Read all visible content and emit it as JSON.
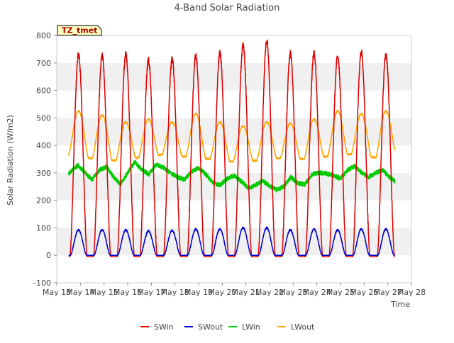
{
  "chart_data": {
    "type": "line",
    "title": "4-Band Solar Radiation",
    "xlabel": "Time",
    "ylabel": "Solar Radiation (W/m2)",
    "annotation": "TZ_tmet",
    "xlim": [
      13,
      28
    ],
    "ylim": [
      -100,
      800
    ],
    "yticks": [
      -100,
      0,
      100,
      200,
      300,
      400,
      500,
      600,
      700,
      800
    ],
    "xticks": [
      {
        "day": 13,
        "label": "May 13"
      },
      {
        "day": 14,
        "label": "May 14"
      },
      {
        "day": 15,
        "label": "May 15"
      },
      {
        "day": 16,
        "label": "May 16"
      },
      {
        "day": 17,
        "label": "May 17"
      },
      {
        "day": 18,
        "label": "May 18"
      },
      {
        "day": 19,
        "label": "May 19"
      },
      {
        "day": 20,
        "label": "May 20"
      },
      {
        "day": 21,
        "label": "May 21"
      },
      {
        "day": 22,
        "label": "May 22"
      },
      {
        "day": 23,
        "label": "May 23"
      },
      {
        "day": 24,
        "label": "May 24"
      },
      {
        "day": 25,
        "label": "May 25"
      },
      {
        "day": 26,
        "label": "May 26"
      },
      {
        "day": 27,
        "label": "May 27"
      },
      {
        "day": 28,
        "label": "May 28"
      }
    ],
    "grid": "horizontal bands",
    "legend": "bottom",
    "series": [
      {
        "name": "SWin",
        "color": "#dd0000",
        "daily_noon": [
          13.92,
          14.92,
          15.92,
          16.88,
          17.88,
          18.88,
          19.9,
          20.88,
          21.88,
          22.88,
          23.88,
          24.88,
          25.88,
          26.92
        ],
        "daily_peak": [
          730,
          725,
          730,
          710,
          715,
          725,
          735,
          765,
          780,
          735,
          735,
          725,
          740,
          730
        ],
        "night_value": -5
      },
      {
        "name": "SWout",
        "color": "#0000cc",
        "daily_noon": [
          13.92,
          14.92,
          15.92,
          16.88,
          17.88,
          18.88,
          19.9,
          20.88,
          21.88,
          22.88,
          23.88,
          24.88,
          25.88,
          26.92
        ],
        "daily_peak": [
          92,
          92,
          92,
          88,
          90,
          95,
          95,
          100,
          100,
          92,
          95,
          92,
          95,
          95
        ],
        "night_value": 0
      },
      {
        "name": "LWin",
        "color": "#00cc00",
        "x": [
          13.0,
          13.3,
          13.6,
          13.9,
          14.2,
          14.5,
          14.8,
          15.1,
          15.4,
          15.7,
          16.0,
          16.3,
          16.6,
          16.9,
          17.2,
          17.5,
          17.8,
          18.1,
          18.4,
          18.7,
          19.0,
          19.3,
          19.6,
          19.9,
          20.2,
          20.5,
          20.8,
          21.1,
          21.4,
          21.7,
          22.0,
          22.3,
          22.6,
          22.9,
          23.2,
          23.5,
          23.8,
          24.1,
          24.4,
          24.7,
          25.0,
          25.3,
          25.6,
          25.9,
          26.2,
          26.5,
          26.8,
          27.0,
          27.3
        ],
        "y": [
          285,
          275,
          305,
          328,
          300,
          275,
          310,
          322,
          285,
          258,
          300,
          340,
          310,
          295,
          330,
          320,
          300,
          285,
          275,
          305,
          318,
          295,
          265,
          255,
          278,
          290,
          270,
          245,
          255,
          272,
          252,
          238,
          250,
          285,
          262,
          258,
          295,
          300,
          298,
          290,
          280,
          310,
          325,
          300,
          285,
          300,
          310,
          290,
          270
        ],
        "noise_amplitude": 8
      },
      {
        "name": "LWout",
        "color": "#ffa500",
        "daily_noon": [
          13.92,
          14.92,
          15.92,
          16.88,
          17.88,
          18.88,
          19.9,
          20.88,
          21.88,
          22.88,
          23.88,
          24.88,
          25.88,
          26.92
        ],
        "daily_peak": [
          525,
          510,
          485,
          495,
          485,
          515,
          485,
          470,
          485,
          480,
          495,
          525,
          515,
          525
        ],
        "x": [
          13.0,
          13.5,
          14.5,
          15.5,
          16.5,
          17.5,
          18.5,
          19.5,
          20.5,
          21.5,
          22.5,
          23.5,
          24.5,
          25.5,
          26.5,
          27.3
        ],
        "night_value": [
          375,
          365,
          352,
          345,
          355,
          368,
          358,
          350,
          340,
          345,
          355,
          350,
          360,
          368,
          355,
          372
        ]
      }
    ]
  }
}
